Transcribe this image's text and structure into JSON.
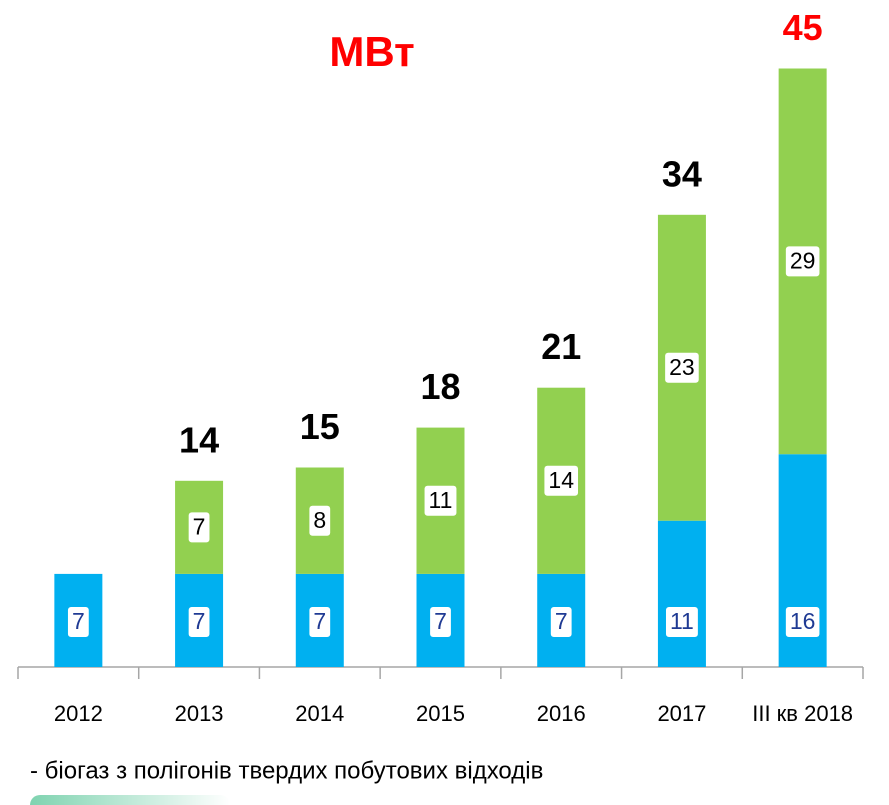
{
  "chart_data": {
    "type": "stacked_bar",
    "title": "МВт",
    "categories": [
      "2012",
      "2013",
      "2014",
      "2015",
      "2016",
      "2017",
      "ІІІ кв 2018"
    ],
    "series": [
      {
        "color": "#00b0f0",
        "label_color": "#1f3a93",
        "values": [
          7,
          7,
          7,
          7,
          7,
          11,
          16
        ]
      },
      {
        "color": "#92d050",
        "label_color": "#000000",
        "values": [
          null,
          7,
          8,
          11,
          14,
          23,
          29
        ]
      }
    ],
    "totals": [
      null,
      14,
      15,
      18,
      21,
      34,
      45
    ],
    "totals_colors": [
      "#000000",
      "#000000",
      "#000000",
      "#000000",
      "#000000",
      "#000000",
      "#ff0000"
    ],
    "ylim": [
      0,
      50
    ],
    "note": "- біогаз з полігонів твердих побутових відходів"
  }
}
